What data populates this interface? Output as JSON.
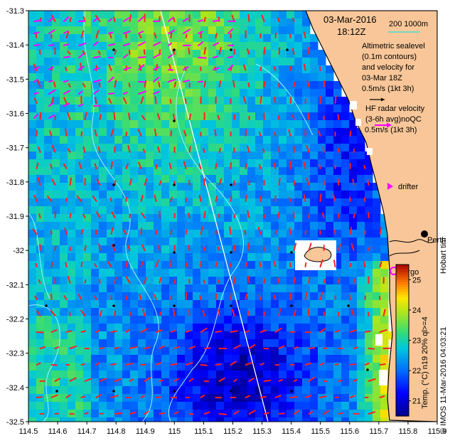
{
  "map": {
    "title": {
      "date": "03-Mar-2016",
      "time": "18:12Z"
    },
    "scale_bar": {
      "label": "200  1000m",
      "color": "#40e0d0"
    },
    "legend": {
      "altimetry_lines": [
        "Altimetric sealevel",
        "(0.1m contours)",
        "and velocity for",
        "03-Mar 18Z",
        "0.5m/s (1kt 3h)"
      ],
      "hf_radar_lines": [
        "HF radar velocity",
        "(3-6h avg)noQC",
        "0.5m/s (1kt 3h)"
      ],
      "hf_radar_color": "#ff00ff",
      "drifter_label": "drifter",
      "argo_label": "Argo",
      "argo_color": "#ff00ff",
      "city_label": "Perth",
      "hobart_label": "Hobart tim"
    },
    "colorbar": {
      "label": "Temp. (°C) n19 20% ql>=4",
      "ticks": [
        "25",
        "24",
        "23",
        "22",
        "21"
      ],
      "min": 20.5,
      "max": 25.5
    },
    "credit": "© IMOS 11-Mar-2016 04:03:21",
    "x_axis": {
      "ticks": [
        "114.5",
        "114.6",
        "114.7",
        "114.8",
        "114.9",
        "115",
        "115.1",
        "115.2",
        "115.3",
        "115.4",
        "115.5",
        "115.6",
        "115.7",
        "115.8",
        "115.9"
      ],
      "min": 114.5,
      "max": 115.9
    },
    "y_axis": {
      "ticks": [
        "-31.3",
        "-31.4",
        "-31.5",
        "-31.6",
        "-31.7",
        "-31.8",
        "-31.9",
        "-32",
        "-32.1",
        "-32.2",
        "-32.3",
        "-32.4",
        "-32.5"
      ],
      "min": -32.5,
      "max": -31.3
    },
    "colors": {
      "land": "#f8c698",
      "velocity_arrow": "#ff2020",
      "radar_arrow": "#ff00ff",
      "contour": "#a0f0ff",
      "track": "#ffffff",
      "coast": "#000000"
    }
  }
}
